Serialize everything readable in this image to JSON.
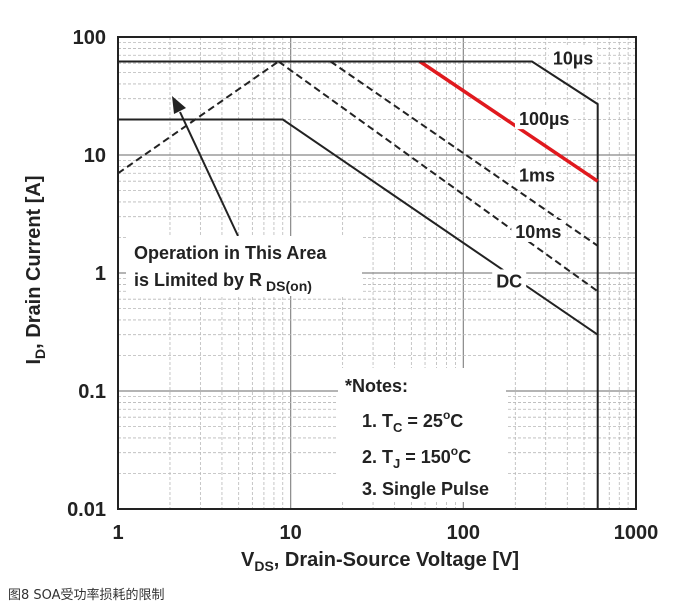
{
  "chart_data": {
    "type": "line",
    "x_scale": "log",
    "y_scale": "log",
    "xlim": [
      1,
      1000
    ],
    "ylim": [
      0.01,
      100
    ],
    "grid": true,
    "xlabel": "VDS, Drain-Source Voltage [V]",
    "xlabel_parts": {
      "main": "V",
      "sub": "DS",
      "rest": ", Drain-Source Voltage [V]"
    },
    "ylabel": "ID, Drain Current [A]",
    "ylabel_parts": {
      "main": "I",
      "sub": "D",
      "rest": ", Drain Current [A]"
    },
    "x_ticks": [
      {
        "value": 1,
        "label": "1"
      },
      {
        "value": 10,
        "label": "10"
      },
      {
        "value": 100,
        "label": "100"
      },
      {
        "value": 1000,
        "label": "1000"
      }
    ],
    "y_ticks": [
      {
        "value": 100,
        "label": "100"
      },
      {
        "value": 10,
        "label": "10"
      },
      {
        "value": 1,
        "label": "1"
      },
      {
        "value": 0.1,
        "label": "0.1"
      },
      {
        "value": 0.01,
        "label": "0.01"
      }
    ],
    "series": [
      {
        "name": "10µs",
        "style": "solid",
        "color": "#222222",
        "points": [
          [
            8.5,
            62
          ],
          [
            250,
            62
          ],
          [
            600,
            27
          ],
          [
            600,
            0.01
          ]
        ]
      },
      {
        "name": "100µs",
        "style": "solid",
        "color": "#e0191e",
        "points": [
          [
            56,
            62
          ],
          [
            600,
            6
          ]
        ]
      },
      {
        "name": "1ms",
        "style": "dashed",
        "color": "#222222",
        "points": [
          [
            17,
            62
          ],
          [
            600,
            1.7
          ]
        ]
      },
      {
        "name": "10ms",
        "style": "dashed",
        "color": "#222222",
        "points": [
          [
            8.5,
            62
          ],
          [
            600,
            0.7
          ]
        ]
      },
      {
        "name": "DC",
        "style": "solid",
        "color": "#222222",
        "points": [
          [
            1,
            20
          ],
          [
            9,
            20
          ],
          [
            600,
            0.3
          ]
        ]
      },
      {
        "name": "RDS(on) limit",
        "style": "dashed",
        "color": "#222222",
        "points": [
          [
            1,
            7
          ],
          [
            8.5,
            62
          ]
        ]
      },
      {
        "name": "current limit",
        "style": "solid",
        "color": "#222222",
        "points": [
          [
            1,
            62
          ],
          [
            250,
            62
          ]
        ]
      }
    ],
    "curve_labels": [
      {
        "text": "10µs",
        "x": 330,
        "y": 62
      },
      {
        "text": "100µs",
        "x": 210,
        "y": 19
      },
      {
        "text": "1ms",
        "x": 210,
        "y": 6.3
      },
      {
        "text": "10ms",
        "x": 200,
        "y": 2.1
      },
      {
        "text": "DC",
        "x": 155,
        "y": 0.8
      }
    ],
    "annotation_area": {
      "line1": "Operation in This Area",
      "line2_main": "is Limited by R",
      "line2_sub": "DS(on)"
    },
    "notes": {
      "title": "*Notes:",
      "n1": {
        "pre": "1. T",
        "sub": "C",
        "mid": " = 25",
        "sup": "o",
        "post": "C"
      },
      "n2": {
        "pre": "2. T",
        "sub": "J",
        "mid": " = 150",
        "sup": "o",
        "post": "C"
      },
      "n3": {
        "pre": "3. Single Pulse"
      }
    }
  },
  "caption": "图8 SOA受功率损耗的限制"
}
